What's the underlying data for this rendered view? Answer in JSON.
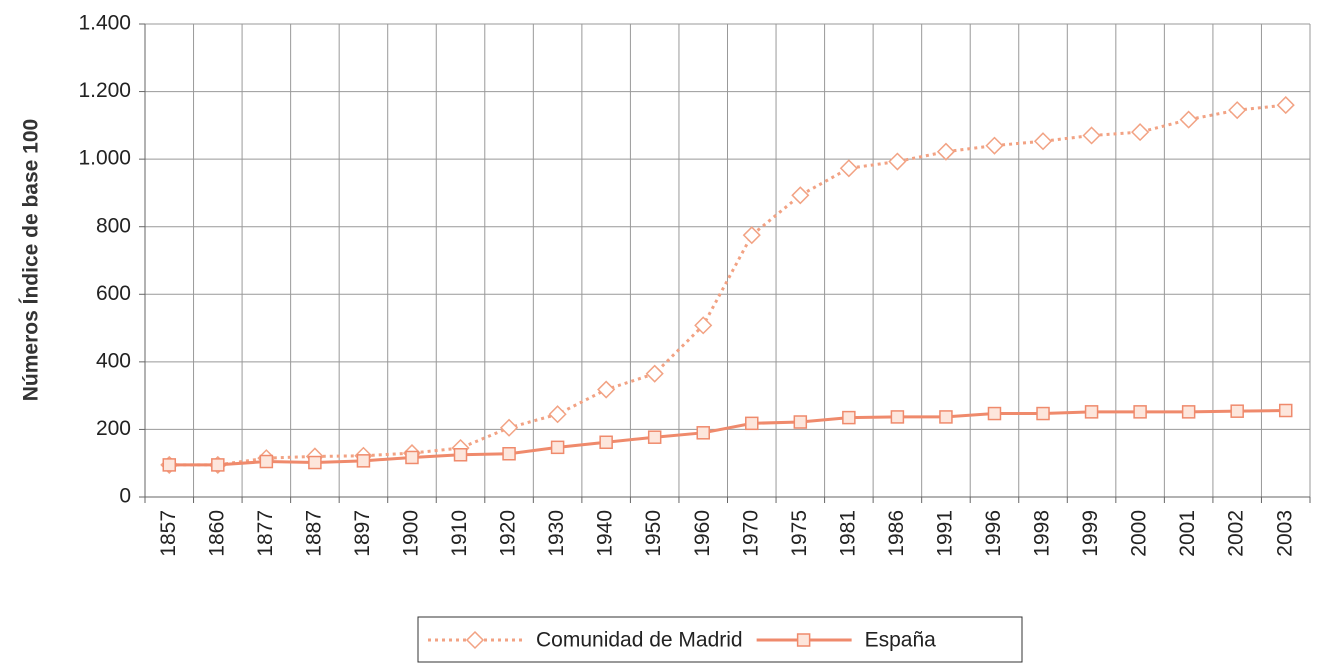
{
  "chart_data": {
    "type": "line",
    "y_label": "Números Índice de base 100",
    "categories": [
      "1857",
      "1860",
      "1877",
      "1887",
      "1897",
      "1900",
      "1910",
      "1920",
      "1930",
      "1940",
      "1950",
      "1960",
      "1970",
      "1975",
      "1981",
      "1986",
      "1991",
      "1996",
      "1998",
      "1999",
      "2000",
      "2001",
      "2002",
      "2003"
    ],
    "series": [
      {
        "name": "Comunidad de Madrid",
        "color": "#f2a283",
        "style": "dotted",
        "marker": "diamond",
        "values": [
          95,
          95,
          115,
          120,
          122,
          130,
          145,
          205,
          245,
          318,
          365,
          508,
          775,
          893,
          973,
          993,
          1022,
          1040,
          1053,
          1070,
          1080,
          1117,
          1145,
          1160
        ]
      },
      {
        "name": "España",
        "color": "#ef8a6c",
        "style": "solid",
        "marker": "square",
        "values": [
          95,
          95,
          105,
          102,
          107,
          117,
          125,
          128,
          147,
          162,
          177,
          190,
          218,
          222,
          235,
          237,
          237,
          247,
          247,
          252,
          252,
          252,
          254,
          256
        ]
      }
    ],
    "ylim": [
      0,
      1400
    ],
    "yticks": [
      0,
      200,
      400,
      600,
      800,
      {
        "value": 1000,
        "label": "1.000"
      },
      {
        "value": 1200,
        "label": "1.200"
      },
      {
        "value": 1400,
        "label": "1.400"
      }
    ],
    "grid": true,
    "legend": "bottom"
  }
}
